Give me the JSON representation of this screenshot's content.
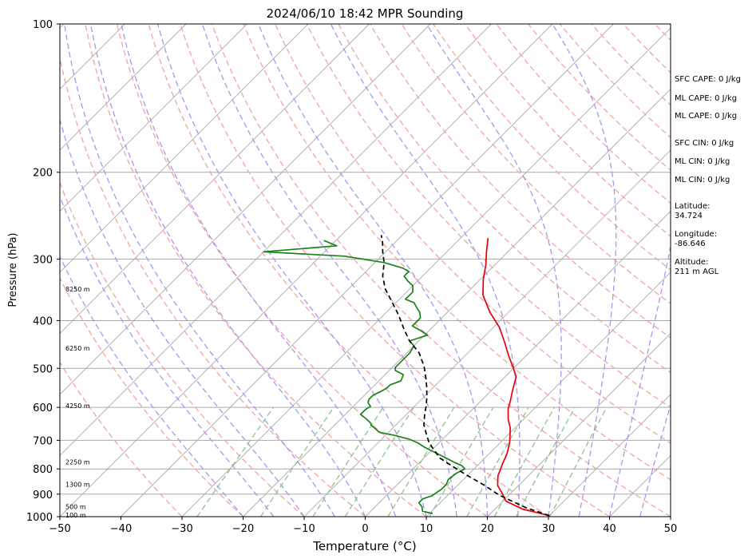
{
  "chart_data": {
    "type": "line",
    "title": "2024/06/10 18:42 MPR Sounding",
    "xlabel": "Temperature (°C)",
    "ylabel": "Pressure (hPa)",
    "xlim": [
      -50,
      50
    ],
    "ylim": [
      1000,
      100
    ],
    "y_scale": "log",
    "x_ticks": [
      "−50",
      "−40",
      "−30",
      "−20",
      "−10",
      "0",
      "10",
      "20",
      "30",
      "40",
      "50"
    ],
    "y_ticks": [
      {
        "p": 100,
        "label": "100"
      },
      {
        "p": 200,
        "label": "200"
      },
      {
        "p": 300,
        "label": "300"
      },
      {
        "p": 400,
        "label": "400"
      },
      {
        "p": 500,
        "label": "500"
      },
      {
        "p": 600,
        "label": "600"
      },
      {
        "p": 700,
        "label": "700"
      },
      {
        "p": 800,
        "label": "800"
      },
      {
        "p": 900,
        "label": "900"
      },
      {
        "p": 1000,
        "label": "1000"
      }
    ],
    "altitude_labels": [
      {
        "p": 345,
        "label": "8250 m"
      },
      {
        "p": 455,
        "label": "6250 m"
      },
      {
        "p": 595,
        "label": "4250 m"
      },
      {
        "p": 775,
        "label": "2250 m"
      },
      {
        "p": 860,
        "label": "1300 m"
      },
      {
        "p": 955,
        "label": "500 m"
      },
      {
        "p": 993,
        "label": "100 m"
      }
    ],
    "series": [
      {
        "key": "temperature",
        "color": "#e8000b",
        "points": [
          [
            30,
            995
          ],
          [
            24.5,
            965
          ],
          [
            20.5,
            930
          ],
          [
            18.5,
            895
          ],
          [
            16.6,
            865
          ],
          [
            15.6,
            840
          ],
          [
            15,
            825
          ],
          [
            14.5,
            805
          ],
          [
            13.8,
            780
          ],
          [
            13.3,
            760
          ],
          [
            12.8,
            742
          ],
          [
            12.2,
            725
          ],
          [
            11.5,
            707
          ],
          [
            10.2,
            680
          ],
          [
            9.2,
            660
          ],
          [
            7.5,
            635
          ],
          [
            5.8,
            605
          ],
          [
            4.8,
            582
          ],
          [
            3.5,
            555
          ],
          [
            2.2,
            528
          ],
          [
            1.8,
            520
          ],
          [
            0,
            500
          ],
          [
            -3,
            470
          ],
          [
            -6,
            440
          ],
          [
            -9,
            413
          ],
          [
            -13,
            385
          ],
          [
            -17,
            355
          ],
          [
            -19.5,
            330
          ],
          [
            -21.5,
            308
          ],
          [
            -23.5,
            290
          ],
          [
            -25.5,
            272
          ]
        ]
      },
      {
        "key": "dewpoint",
        "color": "#1a801a",
        "points": [
          [
            10.5,
            985
          ],
          [
            8.5,
            975
          ],
          [
            7.7,
            955
          ],
          [
            6.5,
            937
          ],
          [
            6.5,
            920
          ],
          [
            7.5,
            907
          ],
          [
            8,
            880
          ],
          [
            8,
            860
          ],
          [
            7.5,
            840
          ],
          [
            7.8,
            817
          ],
          [
            8.5,
            800
          ],
          [
            7.5,
            788
          ],
          [
            6,
            778
          ],
          [
            4,
            763
          ],
          [
            1.5,
            745
          ],
          [
            -1.5,
            724
          ],
          [
            -3.5,
            708
          ],
          [
            -5.5,
            696
          ],
          [
            -8.5,
            684
          ],
          [
            -11.5,
            674
          ],
          [
            -14,
            652
          ],
          [
            -14.5,
            645
          ],
          [
            -16,
            632
          ],
          [
            -17.5,
            620
          ],
          [
            -17.5,
            607
          ],
          [
            -17.2,
            597
          ],
          [
            -18.2,
            587
          ],
          [
            -18.6,
            578
          ],
          [
            -18.6,
            567
          ],
          [
            -18,
            558
          ],
          [
            -17.5,
            548
          ],
          [
            -17.5,
            540
          ],
          [
            -16.4,
            530
          ],
          [
            -17,
            515
          ],
          [
            -19,
            505
          ],
          [
            -19.5,
            498
          ],
          [
            -19.5,
            480
          ],
          [
            -19.5,
            465
          ],
          [
            -20,
            450
          ],
          [
            -21.5,
            440
          ],
          [
            -19.5,
            428
          ],
          [
            -21.2,
            420
          ],
          [
            -23.5,
            410
          ],
          [
            -23.5,
            395
          ],
          [
            -24.5,
            385
          ],
          [
            -26,
            375
          ],
          [
            -27,
            368
          ],
          [
            -29,
            362
          ],
          [
            -29,
            350
          ],
          [
            -30,
            340
          ],
          [
            -31.5,
            333
          ],
          [
            -33,
            325
          ],
          [
            -33,
            318
          ],
          [
            -34.5,
            313
          ],
          [
            -38.5,
            305
          ],
          [
            -46,
            296
          ],
          [
            -60,
            290
          ],
          [
            -49,
            282
          ],
          [
            -52,
            275
          ]
        ]
      },
      {
        "key": "parcel",
        "color": "#000000",
        "points": [
          [
            30,
            995
          ],
          [
            25,
            960
          ],
          [
            18.5,
            905
          ],
          [
            14,
            860
          ],
          [
            10,
            825
          ],
          [
            6,
            790
          ],
          [
            2.6,
            760
          ],
          [
            1,
            740
          ],
          [
            -1.5,
            710
          ],
          [
            -3.5,
            680
          ],
          [
            -5.5,
            650
          ],
          [
            -7,
            620
          ],
          [
            -8.2,
            595
          ],
          [
            -9.6,
            570
          ],
          [
            -11.2,
            545
          ],
          [
            -13,
            520
          ],
          [
            -15,
            495
          ],
          [
            -18,
            465
          ],
          [
            -21.5,
            440
          ],
          [
            -24.5,
            415
          ],
          [
            -27.5,
            390
          ],
          [
            -31,
            365
          ],
          [
            -34,
            345
          ],
          [
            -36.5,
            325
          ],
          [
            -38.5,
            305
          ],
          [
            -40.5,
            290
          ],
          [
            -42,
            278
          ],
          [
            -43.5,
            268
          ]
        ]
      }
    ],
    "annotations": [
      "SFC CAPE: 0 J/kg",
      "ML CAPE: 0 J/kg",
      "ML CAPE: 0 J/kg",
      "SFC CIN: 0 J/kg",
      "ML CIN: 0 J/kg",
      "ML CIN: 0 J/kg"
    ],
    "location": {
      "latitude_label": "Latitude:",
      "latitude": "34.724",
      "longitude_label": "Longitude:",
      "longitude": "-86.646",
      "altitude_label": "Altitude:",
      "altitude": "211 m AGL"
    },
    "grid": true,
    "colors": {
      "isotherm": "#a8a8a8",
      "dry_adiabat": "#f4a3a3",
      "moist_adiabat": "#a598f0",
      "mixing_ratio": "#8cc48c"
    }
  }
}
